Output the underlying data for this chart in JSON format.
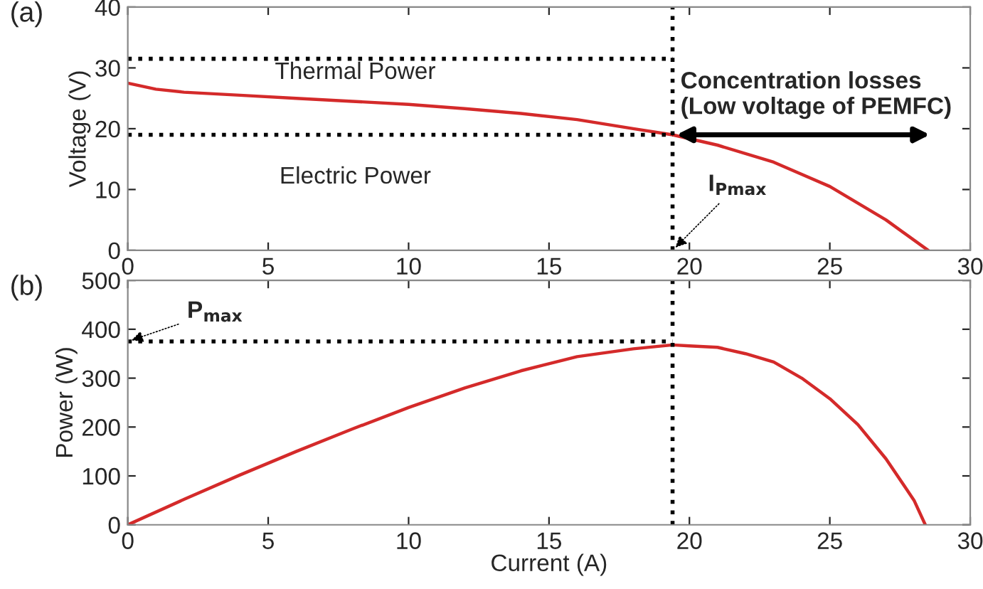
{
  "chart_data": [
    {
      "type": "line",
      "title": "(a)",
      "ylabel": "Voltage (V)",
      "xlim": [
        0,
        30
      ],
      "ylim": [
        0,
        40
      ],
      "xticks": [
        0,
        5,
        10,
        15,
        20,
        25,
        30
      ],
      "yticks": [
        0,
        10,
        20,
        30,
        40
      ],
      "grid": false,
      "series": [
        {
          "color": "#d42a2a",
          "x": [
            0,
            1,
            2,
            4,
            6,
            8,
            10,
            12,
            14,
            16,
            18,
            19.4,
            21,
            23,
            25,
            27,
            28.5
          ],
          "values": [
            27.5,
            26.5,
            26,
            25.5,
            25,
            24.5,
            24,
            23.3,
            22.5,
            21.5,
            20,
            19,
            17.3,
            14.5,
            10.5,
            5,
            0
          ]
        }
      ],
      "ref_lines": [
        {
          "axis": "y",
          "value": 31.5,
          "color": "#000000",
          "line_style": "dotted"
        },
        {
          "axis": "y",
          "value": 19,
          "color": "#000000",
          "line_style": "dotted"
        },
        {
          "axis": "x",
          "value": 19.4,
          "color": "#000000",
          "line_style": "dotted"
        }
      ],
      "annotations": [
        "Thermal Power",
        "Electric Power",
        "Concentration losses\n(Low voltage of PEMFC)",
        {
          "text": "I$_{Pmax}$",
          "x": 19.4,
          "y": 0
        }
      ]
    },
    {
      "type": "line",
      "title": "(b)",
      "xlabel": "Current (A)",
      "ylabel": "Power (W)",
      "xlim": [
        0,
        30
      ],
      "ylim": [
        0,
        500
      ],
      "xticks": [
        0,
        5,
        10,
        15,
        20,
        25,
        30
      ],
      "yticks": [
        0,
        100,
        200,
        300,
        400,
        500
      ],
      "grid": false,
      "series": [
        {
          "color": "#d42a2a",
          "x": [
            0,
            2,
            4,
            6,
            8,
            10,
            12,
            14,
            16,
            18,
            19.4,
            20,
            21,
            22,
            23,
            24,
            25,
            26,
            27,
            28,
            28.4
          ],
          "values": [
            0,
            52,
            102,
            150,
            196,
            240,
            280,
            315,
            344,
            360,
            368,
            366,
            363,
            350,
            333,
            300,
            258,
            205,
            135,
            50,
            0
          ]
        }
      ],
      "ref_lines": [
        {
          "axis": "y",
          "value": 375,
          "color": "#000000",
          "line_style": "dotted"
        },
        {
          "axis": "x",
          "value": 19.4,
          "color": "#000000",
          "line_style": "dotted"
        }
      ],
      "annotations": [
        {
          "text": "P$_{max}$",
          "x": 0,
          "y": 375
        }
      ]
    }
  ]
}
